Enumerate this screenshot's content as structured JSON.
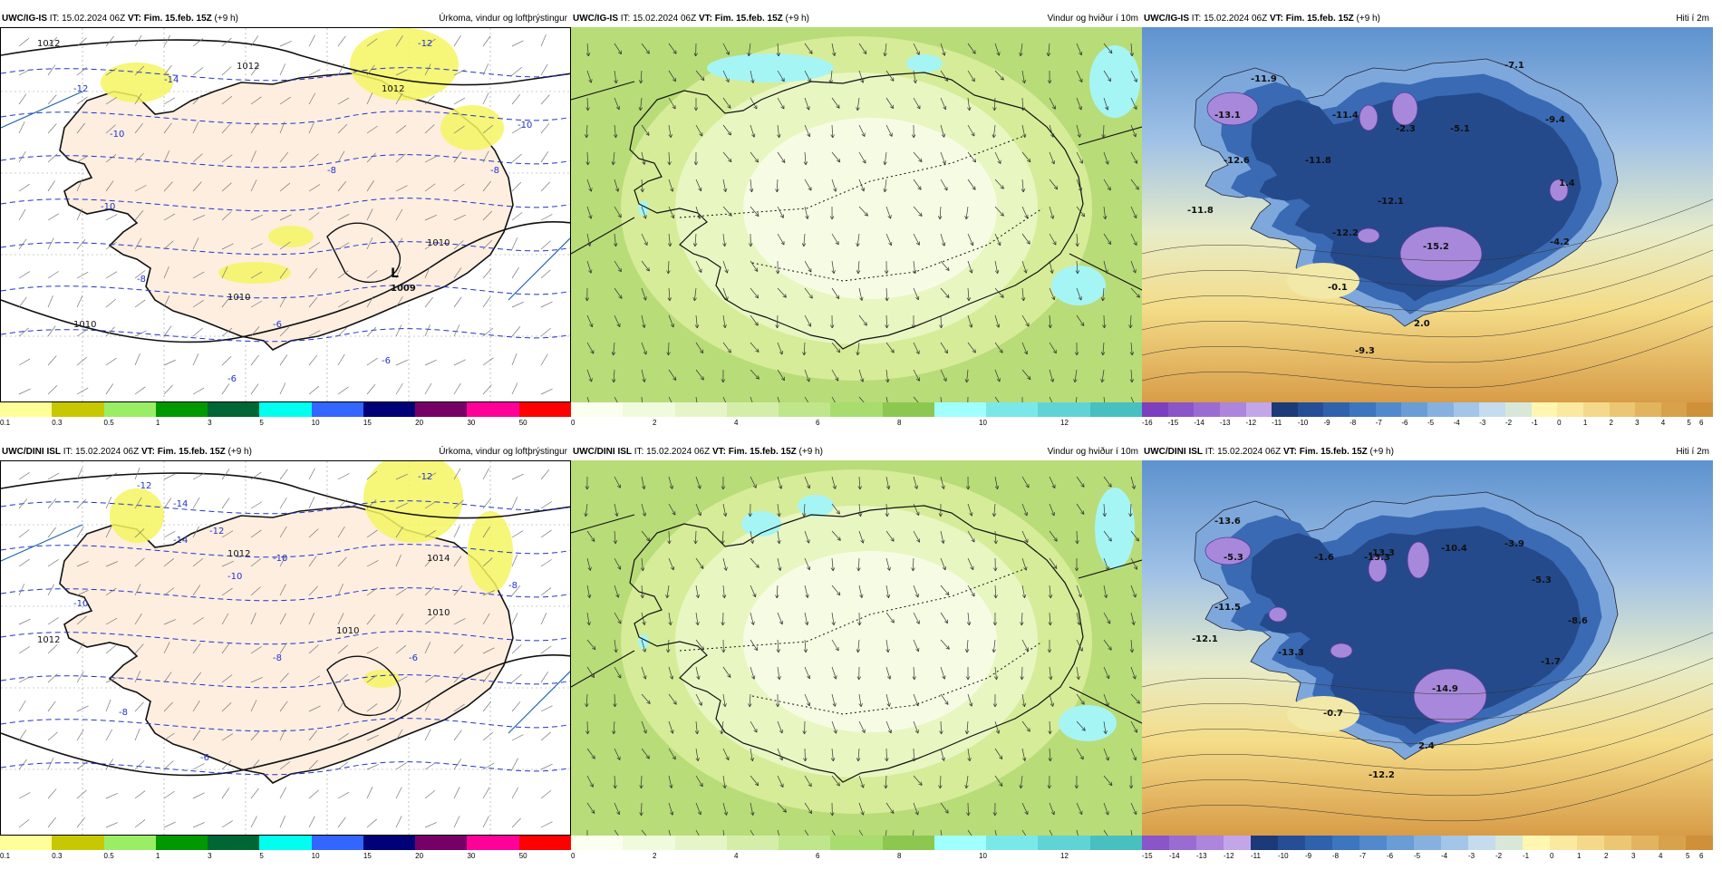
{
  "panels": [
    {
      "model": "UWC/IG-IS",
      "it": " IT: 15.02.2024 06Z ",
      "vt_label": "VT:",
      "vt": " Fim. 15.feb. 15Z",
      "lead": " (+9 h)",
      "product": "Úrkoma, vindur og loftþrýstingur",
      "map_labels": [
        "1012",
        "1012",
        "1012",
        "1010",
        "1010",
        "1010",
        "-12",
        "-14",
        "-12",
        "-10",
        "-10",
        "-8",
        "-8",
        "-8",
        "-6",
        "-6",
        "-6",
        "-10",
        "L",
        "1009"
      ],
      "colorbar": {
        "colors": [
          "#ffff99",
          "#c8c800",
          "#99ee66",
          "#009900",
          "#006633",
          "#00ffee",
          "#3366ff",
          "#000077",
          "#770066",
          "#ff0099",
          "#ff0000"
        ],
        "ticks": [
          "0.1",
          "0.3",
          "0.5",
          "1",
          "3",
          "5",
          "10",
          "15",
          "20",
          "30",
          "50"
        ]
      }
    },
    {
      "model": "UWC/IG-IS",
      "it": " IT: 15.02.2024 06Z ",
      "vt_label": "VT:",
      "vt": " Fim. 15.feb. 15Z",
      "lead": " (+9 h)",
      "product": "Vindur og hviður í 10m",
      "map_labels": [],
      "colorbar": {
        "colors": [
          "#fafff0",
          "#f0fadc",
          "#e6f5c8",
          "#d4eeaa",
          "#c0e68c",
          "#a8dc6e",
          "#8cc850",
          "#a0ffff",
          "#7ae8e8",
          "#60d4d4",
          "#48c0c0"
        ],
        "ticks": [
          "0",
          "2",
          "4",
          "6",
          "8",
          "10",
          "12"
        ]
      }
    },
    {
      "model": "UWC/IG-IS",
      "it": " IT: 15.02.2024 06Z ",
      "vt_label": "VT:",
      "vt": " Fim. 15.feb. 15Z",
      "lead": " (+9 h)",
      "product": "Hiti í 2m",
      "map_labels": [
        "-11.9",
        "-13.1",
        "-12.6",
        "-11.4",
        "-2.3",
        "-5.1",
        "-7.1",
        "-9.4",
        "-11.8",
        "-11.8",
        "-12.1",
        "-12.2",
        "-15.2",
        "-4.2",
        "1.4",
        "-0.1",
        "2.0",
        "-9.3"
      ],
      "colorbar": {
        "colors": [
          "#7b3fbf",
          "#8a55c8",
          "#9a6cd2",
          "#ad85dc",
          "#c3a6e8",
          "#1c3a78",
          "#264e96",
          "#2f62ad",
          "#3c76bf",
          "#5189cc",
          "#6a9dd6",
          "#86b1df",
          "#a3c5e8",
          "#c4dcee",
          "#d8e8d8",
          "#fff6b0",
          "#fbe9a0",
          "#f4d98a",
          "#ebc774",
          "#e2b460",
          "#d8a24c",
          "#ce9038"
        ],
        "ticks": [
          "-16",
          "-15",
          "-14",
          "-13",
          "-12",
          "-11",
          "-10",
          "-9",
          "-8",
          "-7",
          "-6",
          "-5",
          "-4",
          "-3",
          "-2",
          "-1",
          "0",
          "1",
          "2",
          "3",
          "4",
          "5",
          "6"
        ]
      }
    },
    {
      "model": "UWC/DINI ISL",
      "it": " IT: 15.02.2024 06Z ",
      "vt_label": "VT:",
      "vt": " Fim. 15.feb. 15Z",
      "lead": " (+9 h)",
      "product": "Úrkoma, vindur og loftþrýstingur",
      "map_labels": [
        "-14",
        "-12",
        "-12",
        "-14",
        "-12",
        "-10",
        "-10",
        "-10",
        "-8",
        "-8",
        "-8",
        "-6",
        "-6",
        "1012",
        "1012",
        "1010",
        "1010",
        "1014"
      ],
      "colorbar": {
        "colors": [
          "#ffff99",
          "#c8c800",
          "#99ee66",
          "#009900",
          "#006633",
          "#00ffee",
          "#3366ff",
          "#000077",
          "#770066",
          "#ff0099",
          "#ff0000"
        ],
        "ticks": [
          "0.1",
          "0.3",
          "0.5",
          "1",
          "3",
          "5",
          "10",
          "15",
          "20",
          "30",
          "50"
        ]
      }
    },
    {
      "model": "UWC/DINI ISL",
      "it": " IT: 15.02.2024 06Z ",
      "vt_label": "VT:",
      "vt": " Fim. 15.feb. 15Z",
      "lead": " (+9 h)",
      "product": "Vindur og hviður í 10m",
      "map_labels": [],
      "colorbar": {
        "colors": [
          "#fafff0",
          "#f0fadc",
          "#e6f5c8",
          "#d4eeaa",
          "#c0e68c",
          "#a8dc6e",
          "#8cc850",
          "#a0ffff",
          "#7ae8e8",
          "#60d4d4",
          "#48c0c0"
        ],
        "ticks": [
          "0",
          "2",
          "4",
          "6",
          "8",
          "10",
          "12"
        ]
      }
    },
    {
      "model": "UWC/DINI ISL",
      "it": " IT: 15.02.2024 06Z ",
      "vt_label": "VT:",
      "vt": " Fim. 15.feb. 15Z",
      "lead": " (+9 h)",
      "product": "Hiti í 2m",
      "map_labels": [
        "-13.6",
        "-5.3",
        "-1.6",
        "-13.3",
        "-13.3",
        "-10.4",
        "-3.9",
        "-5.3",
        "-11.5",
        "-8.6",
        "-12.1",
        "-13.3",
        "-14.9",
        "-1.7",
        "-0.7",
        "2.4",
        "-12.2"
      ],
      "colorbar": {
        "colors": [
          "#8a55c8",
          "#9a6cd2",
          "#ad85dc",
          "#c3a6e8",
          "#1c3a78",
          "#264e96",
          "#2f62ad",
          "#3c76bf",
          "#5189cc",
          "#6a9dd6",
          "#86b1df",
          "#a3c5e8",
          "#c4dcee",
          "#d8e8d8",
          "#fff6b0",
          "#fbe9a0",
          "#f4d98a",
          "#ebc774",
          "#e2b460",
          "#d8a24c",
          "#ce9038"
        ],
        "ticks": [
          "-15",
          "-14",
          "-13",
          "-12",
          "-11",
          "-10",
          "-9",
          "-8",
          "-7",
          "-6",
          "-5",
          "-4",
          "-3",
          "-2",
          "-1",
          "0",
          "1",
          "2",
          "3",
          "4",
          "5",
          "6"
        ]
      }
    }
  ]
}
